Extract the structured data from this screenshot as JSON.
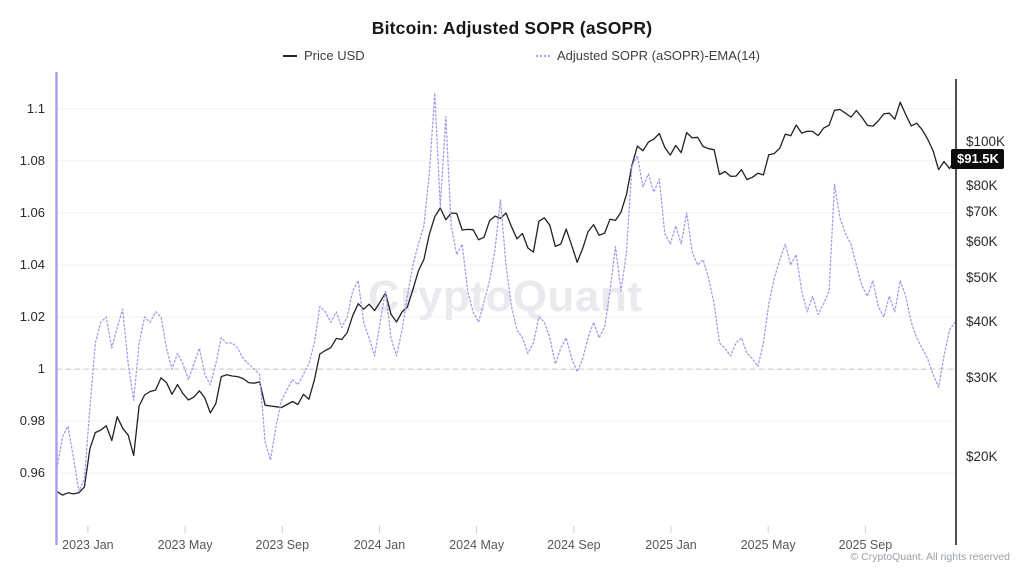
{
  "title": "Bitcoin: Adjusted SOPR (aSOPR)",
  "watermark": "CryptoQuant",
  "footer": "© CryptoQuant. All rights reserved",
  "legend": [
    {
      "label": "Price USD",
      "color": "#26262b",
      "style": "solid"
    },
    {
      "label": "Adjusted SOPR (aSOPR)-EMA(14)",
      "color": "#a9a1ef",
      "style": "dotted"
    }
  ],
  "colors": {
    "price_line": "#222226",
    "sopr_line": "#a29aee",
    "left_axis_line": "#a79df2",
    "right_axis_line": "#3a3a40",
    "gridline": "#f0f0f1",
    "baseline_dash": "#c9c9cd",
    "tick_mark": "#cfcfd4",
    "price_tag_bg": "#0c0c0e",
    "price_tag_text": "#ffffff"
  },
  "chart_data": {
    "type": "line",
    "title": "Bitcoin: Adjusted SOPR (aSOPR)",
    "legend_position": "top",
    "grid": "horizontal",
    "x_unit": "decimal_year",
    "x_range": [
      2022.894,
      2025.974
    ],
    "axes": {
      "left": {
        "scale": "linear",
        "range": [
          0.937,
          1.113
        ],
        "ticks": [
          {
            "v": 1.1,
            "label": "1.1"
          },
          {
            "v": 1.08,
            "label": "1.08"
          },
          {
            "v": 1.06,
            "label": "1.06"
          },
          {
            "v": 1.04,
            "label": "1.04"
          },
          {
            "v": 1.02,
            "label": "1.02"
          },
          {
            "v": 1.0,
            "label": "1"
          },
          {
            "v": 0.98,
            "label": "0.98"
          },
          {
            "v": 0.96,
            "label": "0.96"
          }
        ]
      },
      "right": {
        "scale": "log",
        "unit": "USD thousands",
        "range_k": [
          13.6,
          140.7
        ],
        "ticks": [
          {
            "v": 100,
            "label": "$100K"
          },
          {
            "v": 80,
            "label": "$80K"
          },
          {
            "v": 70,
            "label": "$70K"
          },
          {
            "v": 60,
            "label": "$60K"
          },
          {
            "v": 50,
            "label": "$50K"
          },
          {
            "v": 40,
            "label": "$40K"
          },
          {
            "v": 30,
            "label": "$30K"
          },
          {
            "v": 20,
            "label": "$20K"
          }
        ],
        "current": {
          "v": 91.5,
          "label": "$91.5K"
        }
      },
      "x": {
        "ticks": [
          {
            "t": 2023.0,
            "label": "2023 Jan"
          },
          {
            "t": 2023.3333,
            "label": "2023 May"
          },
          {
            "t": 2023.6667,
            "label": "2023 Sep"
          },
          {
            "t": 2024.0,
            "label": "2024 Jan"
          },
          {
            "t": 2024.3333,
            "label": "2024 May"
          },
          {
            "t": 2024.6667,
            "label": "2024 Sep"
          },
          {
            "t": 2025.0,
            "label": "2025 Jan"
          },
          {
            "t": 2025.3333,
            "label": "2025 May"
          },
          {
            "t": 2025.6667,
            "label": "2025 Sep"
          }
        ]
      }
    },
    "baseline": {
      "axis": "left",
      "v": 1.0
    },
    "series": [
      {
        "name": "Price USD",
        "axis": "right",
        "color": "#222226",
        "dash": "solid",
        "values": [
          16.8,
          16.5,
          16.7,
          16.6,
          16.7,
          17.2,
          20.9,
          22.7,
          23.0,
          23.5,
          21.8,
          24.6,
          23.2,
          22.4,
          20.2,
          26.0,
          27.5,
          28.0,
          28.2,
          30.0,
          29.3,
          27.6,
          29.0,
          27.7,
          26.8,
          27.2,
          28.1,
          27.1,
          25.1,
          26.3,
          30.2,
          30.5,
          30.3,
          30.2,
          29.9,
          29.3,
          29.2,
          29.4,
          26.1,
          26.0,
          25.9,
          25.8,
          26.2,
          26.6,
          26.2,
          27.6,
          26.9,
          29.7,
          33.9,
          34.5,
          35.0,
          36.7,
          36.5,
          37.8,
          41.2,
          43.8,
          42.6,
          43.7,
          42.3,
          44.2,
          46.3,
          41.5,
          39.9,
          42.0,
          43.1,
          47.1,
          51.8,
          54.9,
          62.4,
          68.3,
          71.4,
          67.2,
          69.6,
          69.4,
          63.8,
          64.0,
          63.9,
          60.7,
          61.5,
          66.9,
          68.5,
          67.7,
          69.6,
          64.9,
          61.0,
          62.7,
          58.2,
          57.0,
          66.7,
          67.9,
          65.4,
          58.7,
          59.4,
          64.1,
          59.0,
          54.1,
          58.1,
          63.3,
          65.6,
          62.1,
          62.8,
          67.4,
          67.0,
          69.9,
          76.5,
          88.7,
          97.9,
          95.6,
          99.9,
          101.4,
          104.4,
          97.2,
          93.5,
          98.2,
          94.7,
          104.9,
          102.1,
          102.4,
          97.7,
          96.6,
          96.1,
          84.7,
          86.0,
          83.9,
          84.0,
          86.8,
          82.5,
          83.5,
          85.2,
          84.5,
          93.7,
          94.2,
          96.9,
          104.1,
          103.2,
          109.0,
          104.6,
          105.6,
          105.5,
          103.3,
          107.3,
          108.9,
          117.5,
          118.0,
          115.8,
          113.5,
          117.4,
          113.4,
          108.8,
          108.4,
          111.3,
          115.4,
          115.8,
          112.3,
          122.5,
          115.0,
          108.5,
          110.0,
          106.5,
          101.5,
          95.6,
          86.8,
          90.5,
          87.3,
          91.5
        ]
      },
      {
        "name": "Adjusted SOPR (aSOPR)-EMA(14)",
        "axis": "left",
        "color": "#a29aee",
        "dash": "dotted",
        "values": [
          0.962,
          0.974,
          0.978,
          0.966,
          0.953,
          0.958,
          0.985,
          1.01,
          1.018,
          1.02,
          1.008,
          1.016,
          1.023,
          1.002,
          0.988,
          1.01,
          1.02,
          1.018,
          1.022,
          1.02,
          1.008,
          1.0,
          1.006,
          1.002,
          0.996,
          1.002,
          1.008,
          0.998,
          0.994,
          1.002,
          1.012,
          1.01,
          1.01,
          1.008,
          1.004,
          1.002,
          1.0,
          0.998,
          0.972,
          0.965,
          0.978,
          0.988,
          0.992,
          0.996,
          0.994,
          0.998,
          1.002,
          1.01,
          1.024,
          1.022,
          1.018,
          1.022,
          1.016,
          1.02,
          1.03,
          1.034,
          1.018,
          1.012,
          1.005,
          1.018,
          1.03,
          1.012,
          1.005,
          1.015,
          1.028,
          1.04,
          1.048,
          1.055,
          1.075,
          1.106,
          1.062,
          1.097,
          1.055,
          1.044,
          1.048,
          1.03,
          1.022,
          1.018,
          1.026,
          1.034,
          1.046,
          1.065,
          1.04,
          1.024,
          1.015,
          1.012,
          1.006,
          1.01,
          1.02,
          1.018,
          1.012,
          1.002,
          1.008,
          1.012,
          1.004,
          0.999,
          1.004,
          1.012,
          1.018,
          1.012,
          1.016,
          1.03,
          1.047,
          1.03,
          1.045,
          1.078,
          1.082,
          1.07,
          1.075,
          1.068,
          1.073,
          1.052,
          1.048,
          1.055,
          1.048,
          1.06,
          1.045,
          1.04,
          1.042,
          1.035,
          1.025,
          1.01,
          1.008,
          1.005,
          1.01,
          1.012,
          1.006,
          1.004,
          1.001,
          1.01,
          1.025,
          1.035,
          1.042,
          1.048,
          1.04,
          1.044,
          1.03,
          1.022,
          1.028,
          1.021,
          1.025,
          1.03,
          1.071,
          1.058,
          1.052,
          1.048,
          1.04,
          1.032,
          1.028,
          1.034,
          1.024,
          1.02,
          1.028,
          1.022,
          1.034,
          1.028,
          1.018,
          1.012,
          1.008,
          1.004,
          0.998,
          0.993,
          1.005,
          1.015,
          1.018
        ]
      }
    ]
  }
}
